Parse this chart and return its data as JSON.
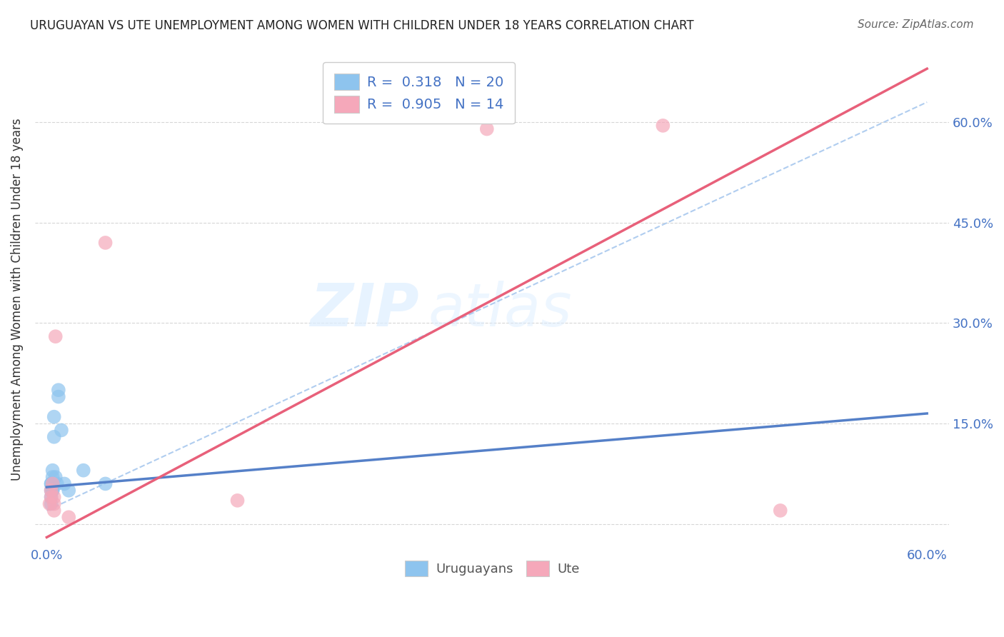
{
  "title": "URUGUAYAN VS UTE UNEMPLOYMENT AMONG WOMEN WITH CHILDREN UNDER 18 YEARS CORRELATION CHART",
  "source": "Source: ZipAtlas.com",
  "ylabel": "Unemployment Among Women with Children Under 18 years",
  "xlim": [
    0.0,
    0.6
  ],
  "ylim": [
    -0.02,
    0.68
  ],
  "yticks": [
    0.0,
    0.15,
    0.3,
    0.45,
    0.6
  ],
  "legend_r1": "R =  0.318   N = 20",
  "legend_r2": "R =  0.905   N = 14",
  "blue_color": "#8EC4EE",
  "pink_color": "#F5A8BA",
  "blue_line_color": "#5580C8",
  "pink_line_color": "#E8607A",
  "dashed_line_color": "#A8C8EE",
  "watermark_zip": "ZIP",
  "watermark_atlas": "atlas",
  "blue_dots_x": [
    0.003,
    0.003,
    0.003,
    0.003,
    0.003,
    0.004,
    0.004,
    0.004,
    0.004,
    0.005,
    0.005,
    0.006,
    0.007,
    0.008,
    0.008,
    0.01,
    0.012,
    0.015,
    0.025,
    0.04
  ],
  "blue_dots_y": [
    0.03,
    0.04,
    0.05,
    0.06,
    0.06,
    0.05,
    0.05,
    0.07,
    0.08,
    0.13,
    0.16,
    0.07,
    0.06,
    0.19,
    0.2,
    0.14,
    0.06,
    0.05,
    0.08,
    0.06
  ],
  "pink_dots_x": [
    0.002,
    0.003,
    0.003,
    0.004,
    0.005,
    0.005,
    0.005,
    0.006,
    0.015,
    0.04,
    0.3,
    0.42,
    0.5,
    0.13
  ],
  "pink_dots_y": [
    0.03,
    0.04,
    0.05,
    0.06,
    0.02,
    0.03,
    0.04,
    0.28,
    0.01,
    0.42,
    0.59,
    0.595,
    0.02,
    0.035
  ],
  "blue_line_x": [
    0.0,
    0.6
  ],
  "blue_line_y": [
    0.055,
    0.165
  ],
  "pink_line_x": [
    0.0,
    0.6
  ],
  "pink_line_y": [
    -0.02,
    0.68
  ],
  "dashed_line_x": [
    0.0,
    0.6
  ],
  "dashed_line_y": [
    0.02,
    0.63
  ]
}
